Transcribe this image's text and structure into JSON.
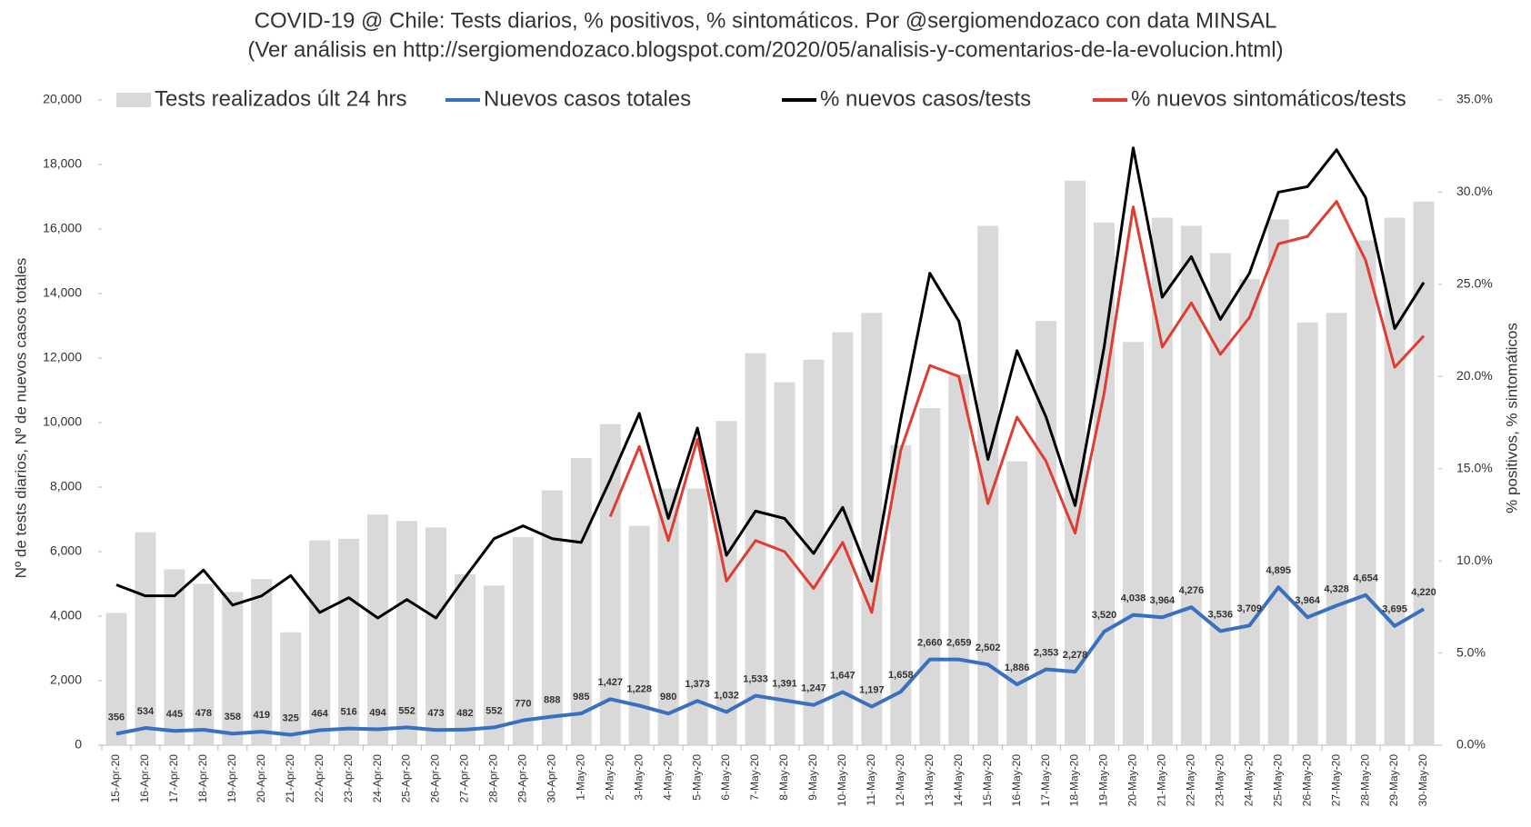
{
  "chart_data": {
    "type": "bar",
    "title": "COVID-19 @ Chile: Tests diarios, % positivos, % sintomáticos. Por @sergiomendozaco con data MINSAL",
    "subtitle": "(Ver análisis en http://sergiomendozaco.blogspot.com/2020/05/analisis-y-comentarios-de-la-evolucion.html)",
    "y_label": "Nº de tests diarios, Nº de nuevos casos totales",
    "y2_label": "% positivos, % sintomáticos",
    "categories": [
      "15-Apr-20",
      "16-Apr-20",
      "17-Apr-20",
      "18-Apr-20",
      "19-Apr-20",
      "20-Apr-20",
      "21-Apr-20",
      "22-Apr-20",
      "23-Apr-20",
      "24-Apr-20",
      "25-Apr-20",
      "26-Apr-20",
      "27-Apr-20",
      "28-Apr-20",
      "29-Apr-20",
      "30-Apr-20",
      "1-May-20",
      "2-May-20",
      "3-May-20",
      "4-May-20",
      "5-May-20",
      "6-May-20",
      "7-May-20",
      "8-May-20",
      "9-May-20",
      "10-May-20",
      "11-May-20",
      "12-May-20",
      "13-May-20",
      "14-May-20",
      "15-May-20",
      "16-May-20",
      "17-May-20",
      "18-May-20",
      "19-May-20",
      "20-May-20",
      "21-May-20",
      "22-May-20",
      "23-May-20",
      "24-May-20",
      "25-May-20",
      "26-May-20",
      "27-May-20",
      "28-May-20",
      "29-May-20",
      "30-May-20"
    ],
    "series": [
      {
        "name": "Tests realizados últ 24 hrs",
        "type": "bar",
        "color": "#d9d9d9",
        "values": [
          4100,
          6600,
          5450,
          5000,
          4750,
          5150,
          3500,
          6350,
          6400,
          7150,
          6950,
          6750,
          5300,
          4950,
          6450,
          7900,
          8900,
          9950,
          6800,
          7950,
          7950,
          10050,
          12150,
          11250,
          11950,
          12800,
          13400,
          9300,
          10450,
          11500,
          16100,
          8800,
          13150,
          17500,
          16200,
          12500,
          16350,
          16100,
          15250,
          14450,
          16300,
          13100,
          13400,
          15650,
          16350,
          16850
        ]
      },
      {
        "name": "Nuevos casos totales",
        "type": "line",
        "color": "#3a70c0",
        "values": [
          356,
          534,
          445,
          478,
          358,
          419,
          325,
          464,
          516,
          494,
          552,
          473,
          482,
          552,
          770,
          888,
          985,
          1427,
          1228,
          980,
          1373,
          1032,
          1533,
          1391,
          1247,
          1647,
          1197,
          1658,
          2660,
          2659,
          2502,
          1886,
          2353,
          2278,
          3520,
          4038,
          3964,
          4276,
          3536,
          3709,
          4895,
          3964,
          4328,
          4654,
          3695,
          4220
        ],
        "value_labels": [
          "356",
          "534",
          "445",
          "478",
          "358",
          "419",
          "325",
          "464",
          "516",
          "494",
          "552",
          "473",
          "482",
          "552",
          "770",
          "888",
          "985",
          "1,427",
          "1,228",
          "980",
          "1,373",
          "1,032",
          "1,533",
          "1,391",
          "1,247",
          "1,647",
          "1,197",
          "1,658",
          "2,660",
          "2,659",
          "2,502",
          "1,886",
          "2,353",
          "2,278",
          "3,520",
          "4,038",
          "3,964",
          "4,276",
          "3,536",
          "3,709",
          "4,895",
          "3,964",
          "4,328",
          "4,654",
          "3,695",
          "4,220"
        ]
      },
      {
        "name": "% nuevos casos/tests",
        "type": "line",
        "axis": "y2",
        "color": "#000000",
        "values": [
          8.7,
          8.1,
          8.1,
          9.5,
          7.6,
          8.1,
          9.2,
          7.2,
          8.0,
          6.9,
          7.9,
          6.9,
          9.1,
          11.2,
          11.9,
          11.2,
          11.0,
          14.4,
          18.0,
          12.3,
          17.2,
          10.3,
          12.7,
          12.3,
          10.4,
          12.9,
          8.9,
          17.7,
          25.6,
          23.0,
          15.5,
          21.4,
          17.8,
          13.0,
          21.6,
          32.4,
          24.3,
          26.5,
          23.1,
          25.6,
          30.0,
          30.3,
          32.3,
          29.7,
          22.6,
          25.1
        ]
      },
      {
        "name": "% nuevos sintomáticos/tests",
        "type": "line",
        "axis": "y2",
        "color": "#e03c31",
        "values": [
          null,
          null,
          null,
          null,
          null,
          null,
          null,
          null,
          null,
          null,
          null,
          null,
          null,
          null,
          null,
          null,
          null,
          12.4,
          16.2,
          11.1,
          16.6,
          8.9,
          11.1,
          10.5,
          8.5,
          11.0,
          7.2,
          16.0,
          20.6,
          20.0,
          13.1,
          17.8,
          15.4,
          11.5,
          19.1,
          29.2,
          21.6,
          24.0,
          21.2,
          23.2,
          27.2,
          27.6,
          29.5,
          26.3,
          20.5,
          22.2
        ]
      }
    ],
    "ylim": [
      0,
      20000
    ],
    "yticks": [
      0,
      {
        "value": 2000,
        "label": "2,000"
      },
      {
        "value": 4000,
        "label": "4,000"
      },
      {
        "value": 6000,
        "label": "6,000"
      },
      {
        "value": 8000,
        "label": "8,000"
      },
      {
        "value": 10000,
        "label": "10,000"
      },
      {
        "value": 12000,
        "label": "12,000"
      },
      {
        "value": 14000,
        "label": "14,000"
      },
      {
        "value": 16000,
        "label": "16,000"
      },
      {
        "value": 18000,
        "label": "18,000"
      },
      {
        "value": 20000,
        "label": "20,000"
      }
    ],
    "y2lim": [
      0,
      35
    ],
    "y2ticks": [
      {
        "value": 0,
        "label": "0.0%"
      },
      {
        "value": 5,
        "label": "5.0%"
      },
      {
        "value": 10,
        "label": "10.0%"
      },
      {
        "value": 15,
        "label": "15.0%"
      },
      {
        "value": 20,
        "label": "20.0%"
      },
      {
        "value": 25,
        "label": "25.0%"
      },
      {
        "value": 30,
        "label": "30.0%"
      },
      {
        "value": 35,
        "label": "35.0%"
      }
    ],
    "legend": "top"
  }
}
